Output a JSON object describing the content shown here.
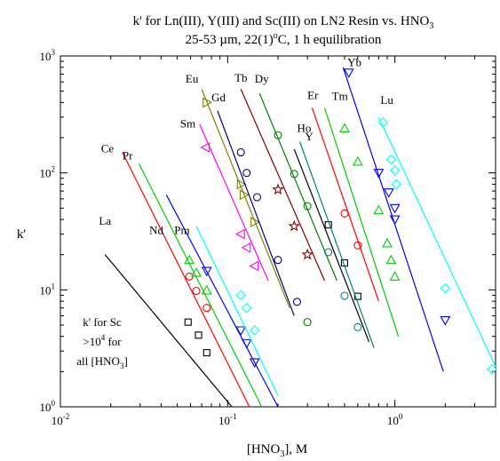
{
  "chart_data": {
    "type": "line",
    "title_main": "k' for Ln(III), Y(III) and Sc(III) on LN2 Resin vs. HNO",
    "title_sub": "3",
    "subtitle_a": "25-53 µm, 22(1)",
    "subtitle_deg": "o",
    "subtitle_b": "C, 1 h equilibration",
    "xlabel_a": "[HNO",
    "xlabel_sub": "3",
    "xlabel_b": "], M",
    "ylabel": "k'",
    "x_scale": "log",
    "y_scale": "log",
    "xlim": [
      0.01,
      4
    ],
    "ylim": [
      1,
      1000
    ],
    "x_ticks": [
      {
        "value": 0.01,
        "base": "10",
        "exp": "-2"
      },
      {
        "value": 0.1,
        "base": "10",
        "exp": "-1"
      },
      {
        "value": 1,
        "base": "10",
        "exp": "0"
      }
    ],
    "y_ticks": [
      {
        "value": 1,
        "base": "10",
        "exp": "0"
      },
      {
        "value": 10,
        "base": "10",
        "exp": "1"
      },
      {
        "value": 100,
        "base": "10",
        "exp": "2"
      },
      {
        "value": 1000,
        "base": "10",
        "exp": "3"
      }
    ],
    "annotation_lines": [
      "k' for Sc",
      ">10",
      "4",
      " for",
      "all [HNO",
      "3",
      "]"
    ],
    "series": [
      {
        "name": "La",
        "color": "#000000",
        "marker": "square",
        "label_at": [
          0.017,
          36
        ],
        "line": [
          [
            0.0185,
            20
          ],
          [
            0.106,
            1
          ]
        ],
        "points": [
          [
            0.058,
            5.3
          ],
          [
            0.067,
            4.1
          ],
          [
            0.075,
            2.9
          ]
        ]
      },
      {
        "name": "Ce",
        "color": "#ff0000",
        "marker": "circle",
        "label_at": [
          0.0175,
          150
        ],
        "line": [
          [
            0.0235,
            150
          ],
          [
            0.135,
            1
          ]
        ],
        "points": [
          [
            0.059,
            13
          ],
          [
            0.065,
            9.8
          ],
          [
            0.075,
            7
          ]
        ]
      },
      {
        "name": "Pr",
        "color": "#00cc00",
        "marker": "triangle-up",
        "label_at": [
          0.0235,
          130
        ],
        "line": [
          [
            0.0295,
            120
          ],
          [
            0.16,
            1
          ]
        ],
        "points": [
          [
            0.059,
            18
          ],
          [
            0.065,
            14
          ],
          [
            0.075,
            9.9
          ]
        ]
      },
      {
        "name": "Nd",
        "color": "#0000ff",
        "marker": "triangle-down",
        "label_at": [
          0.034,
          30
        ],
        "line": [
          [
            0.043,
            65
          ],
          [
            0.2,
            1
          ]
        ],
        "points": [
          [
            0.075,
            14.5
          ],
          [
            0.12,
            4.5
          ],
          [
            0.13,
            3.5
          ],
          [
            0.145,
            2.4
          ]
        ]
      },
      {
        "name": "Pm",
        "color": "#00ffff",
        "marker": "diamond",
        "label_at": [
          0.048,
          30
        ],
        "line": [
          [
            0.065,
            35
          ],
          [
            0.2,
            1.25
          ]
        ],
        "points": [
          [
            0.12,
            9
          ],
          [
            0.13,
            7
          ],
          [
            0.145,
            4.5
          ]
        ]
      },
      {
        "name": "Sm",
        "color": "#ff00ff",
        "marker": "triangle-left",
        "label_at": [
          0.052,
          245
        ],
        "line": [
          [
            0.068,
            260
          ],
          [
            0.175,
            12
          ]
        ],
        "points": [
          [
            0.074,
            165
          ],
          [
            0.12,
            30
          ],
          [
            0.13,
            23
          ],
          [
            0.145,
            16
          ]
        ]
      },
      {
        "name": "Eu",
        "color": "#808000",
        "marker": "triangle-right",
        "label_at": [
          0.056,
          590
        ],
        "line": [
          [
            0.07,
            520
          ],
          [
            0.235,
            7
          ]
        ],
        "points": [
          [
            0.075,
            400
          ],
          [
            0.12,
            80
          ],
          [
            0.125,
            65
          ],
          [
            0.145,
            38
          ]
        ]
      },
      {
        "name": "Gd",
        "color": "#000080",
        "marker": "circle",
        "label_at": [
          0.08,
          410
        ],
        "line": [
          [
            0.087,
            340
          ],
          [
            0.25,
            6
          ]
        ],
        "points": [
          [
            0.12,
            150
          ],
          [
            0.13,
            100
          ],
          [
            0.15,
            62
          ],
          [
            0.2,
            18
          ],
          [
            0.26,
            7.9
          ]
        ]
      },
      {
        "name": "Tb",
        "color": "#800000",
        "marker": "star",
        "label_at": [
          0.11,
          600
        ],
        "line": [
          [
            0.12,
            520
          ],
          [
            0.38,
            12
          ]
        ],
        "points": [
          [
            0.2,
            72
          ],
          [
            0.25,
            35
          ],
          [
            0.3,
            20
          ]
        ]
      },
      {
        "name": "Dy",
        "color": "#008000",
        "marker": "circle",
        "label_at": [
          0.145,
          590
        ],
        "line": [
          [
            0.155,
            480
          ],
          [
            0.45,
            12
          ]
        ],
        "points": [
          [
            0.2,
            210
          ],
          [
            0.25,
            98
          ],
          [
            0.3,
            52
          ],
          [
            0.3,
            5.3
          ]
        ]
      },
      {
        "name": "Ho",
        "color": "#000000",
        "marker": "square",
        "label_at": [
          0.26,
          225
        ],
        "line": [
          [
            0.25,
            160
          ],
          [
            0.7,
            3.6
          ]
        ],
        "points": [
          [
            0.4,
            36
          ],
          [
            0.5,
            17
          ],
          [
            0.6,
            8.8
          ]
        ]
      },
      {
        "name": "Y",
        "color": "#008080",
        "marker": "circle",
        "label_at": [
          0.29,
          190
        ],
        "line": [
          [
            0.27,
            185
          ],
          [
            0.75,
            3.2
          ]
        ],
        "points": [
          [
            0.4,
            21
          ],
          [
            0.5,
            8.9
          ],
          [
            0.6,
            4.8
          ]
        ]
      },
      {
        "name": "Er",
        "color": "#ff0000",
        "marker": "circle",
        "label_at": [
          0.3,
          430
        ],
        "line": [
          [
            0.32,
            360
          ],
          [
            0.8,
            8
          ]
        ],
        "points": [
          [
            0.5,
            45
          ],
          [
            0.6,
            24
          ]
        ]
      },
      {
        "name": "Tm",
        "color": "#00cc00",
        "marker": "triangle-up",
        "label_at": [
          0.42,
          420
        ],
        "line": [
          [
            0.38,
            360
          ],
          [
            1.05,
            4
          ]
        ],
        "points": [
          [
            0.5,
            240
          ],
          [
            0.6,
            125
          ],
          [
            0.8,
            48
          ],
          [
            0.9,
            25
          ],
          [
            0.95,
            18
          ],
          [
            1.0,
            13
          ]
        ]
      },
      {
        "name": "Yb",
        "color": "#0000ff",
        "marker": "triangle-down",
        "label_at": [
          0.52,
          820
        ],
        "line": [
          [
            0.49,
            800
          ],
          [
            1.95,
            2
          ]
        ],
        "points": [
          [
            0.53,
            720
          ],
          [
            0.8,
            100
          ],
          [
            0.92,
            68
          ],
          [
            1.0,
            50
          ],
          [
            1.0,
            40
          ],
          [
            2.0,
            5.5
          ]
        ]
      },
      {
        "name": "Lu",
        "color": "#00ffff",
        "marker": "diamond",
        "label_at": [
          0.82,
          390
        ],
        "line": [
          [
            0.8,
            300
          ],
          [
            4.0,
            2.2
          ]
        ],
        "points": [
          [
            0.85,
            270
          ],
          [
            0.95,
            130
          ],
          [
            1.0,
            105
          ],
          [
            1.02,
            80
          ],
          [
            2.0,
            10.3
          ],
          [
            3.8,
            2.1
          ]
        ]
      }
    ]
  }
}
